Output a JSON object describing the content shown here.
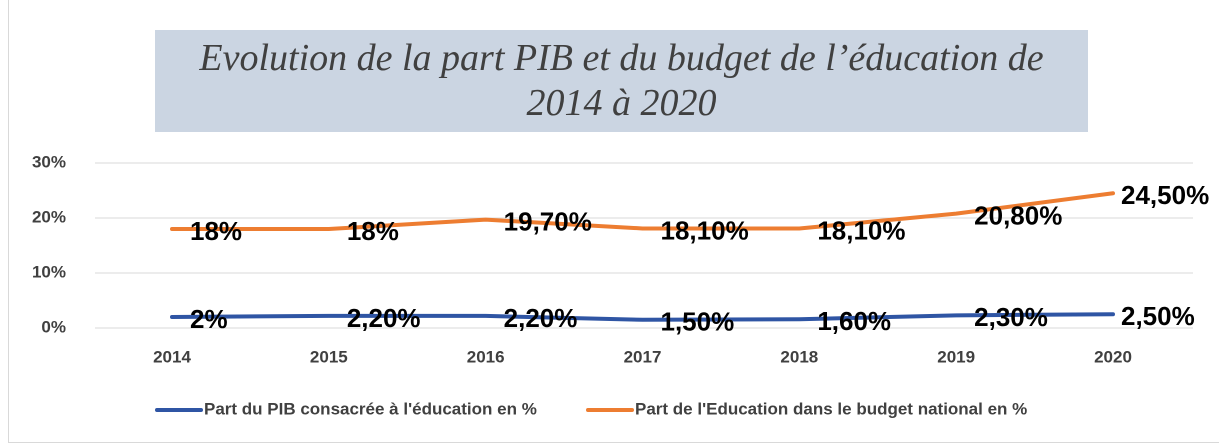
{
  "chart_data": {
    "type": "line",
    "title": "Evolution de la part PIB et du budget de l’éducation de 2014 à 2020",
    "categories": [
      "2014",
      "2015",
      "2016",
      "2017",
      "2018",
      "2019",
      "2020"
    ],
    "series": [
      {
        "name": "Part du PIB consacrée à l'éducation en %",
        "color": "#2f55a4",
        "values": [
          2,
          2.2,
          2.2,
          1.5,
          1.6,
          2.3,
          2.5
        ],
        "value_labels": [
          "2%",
          "2,20%",
          "2,20%",
          "1,50%",
          "1,60%",
          "2,30%",
          "2,50%"
        ]
      },
      {
        "name": "Part de l'Education dans le budget national en %",
        "color": "#ed7d31",
        "values": [
          18,
          18,
          19.7,
          18.1,
          18.1,
          20.8,
          24.5
        ],
        "value_labels": [
          "18%",
          "18%",
          "19,70%",
          "18,10%",
          "18,10%",
          "20,80%",
          "24,50%"
        ]
      }
    ],
    "ylim": [
      0,
      30
    ],
    "yticks": [
      {
        "value": 0,
        "label": "0%"
      },
      {
        "value": 10,
        "label": "10%"
      },
      {
        "value": 20,
        "label": "20%"
      },
      {
        "value": 30,
        "label": "30%"
      }
    ],
    "grid": true,
    "legend": "bottom"
  }
}
